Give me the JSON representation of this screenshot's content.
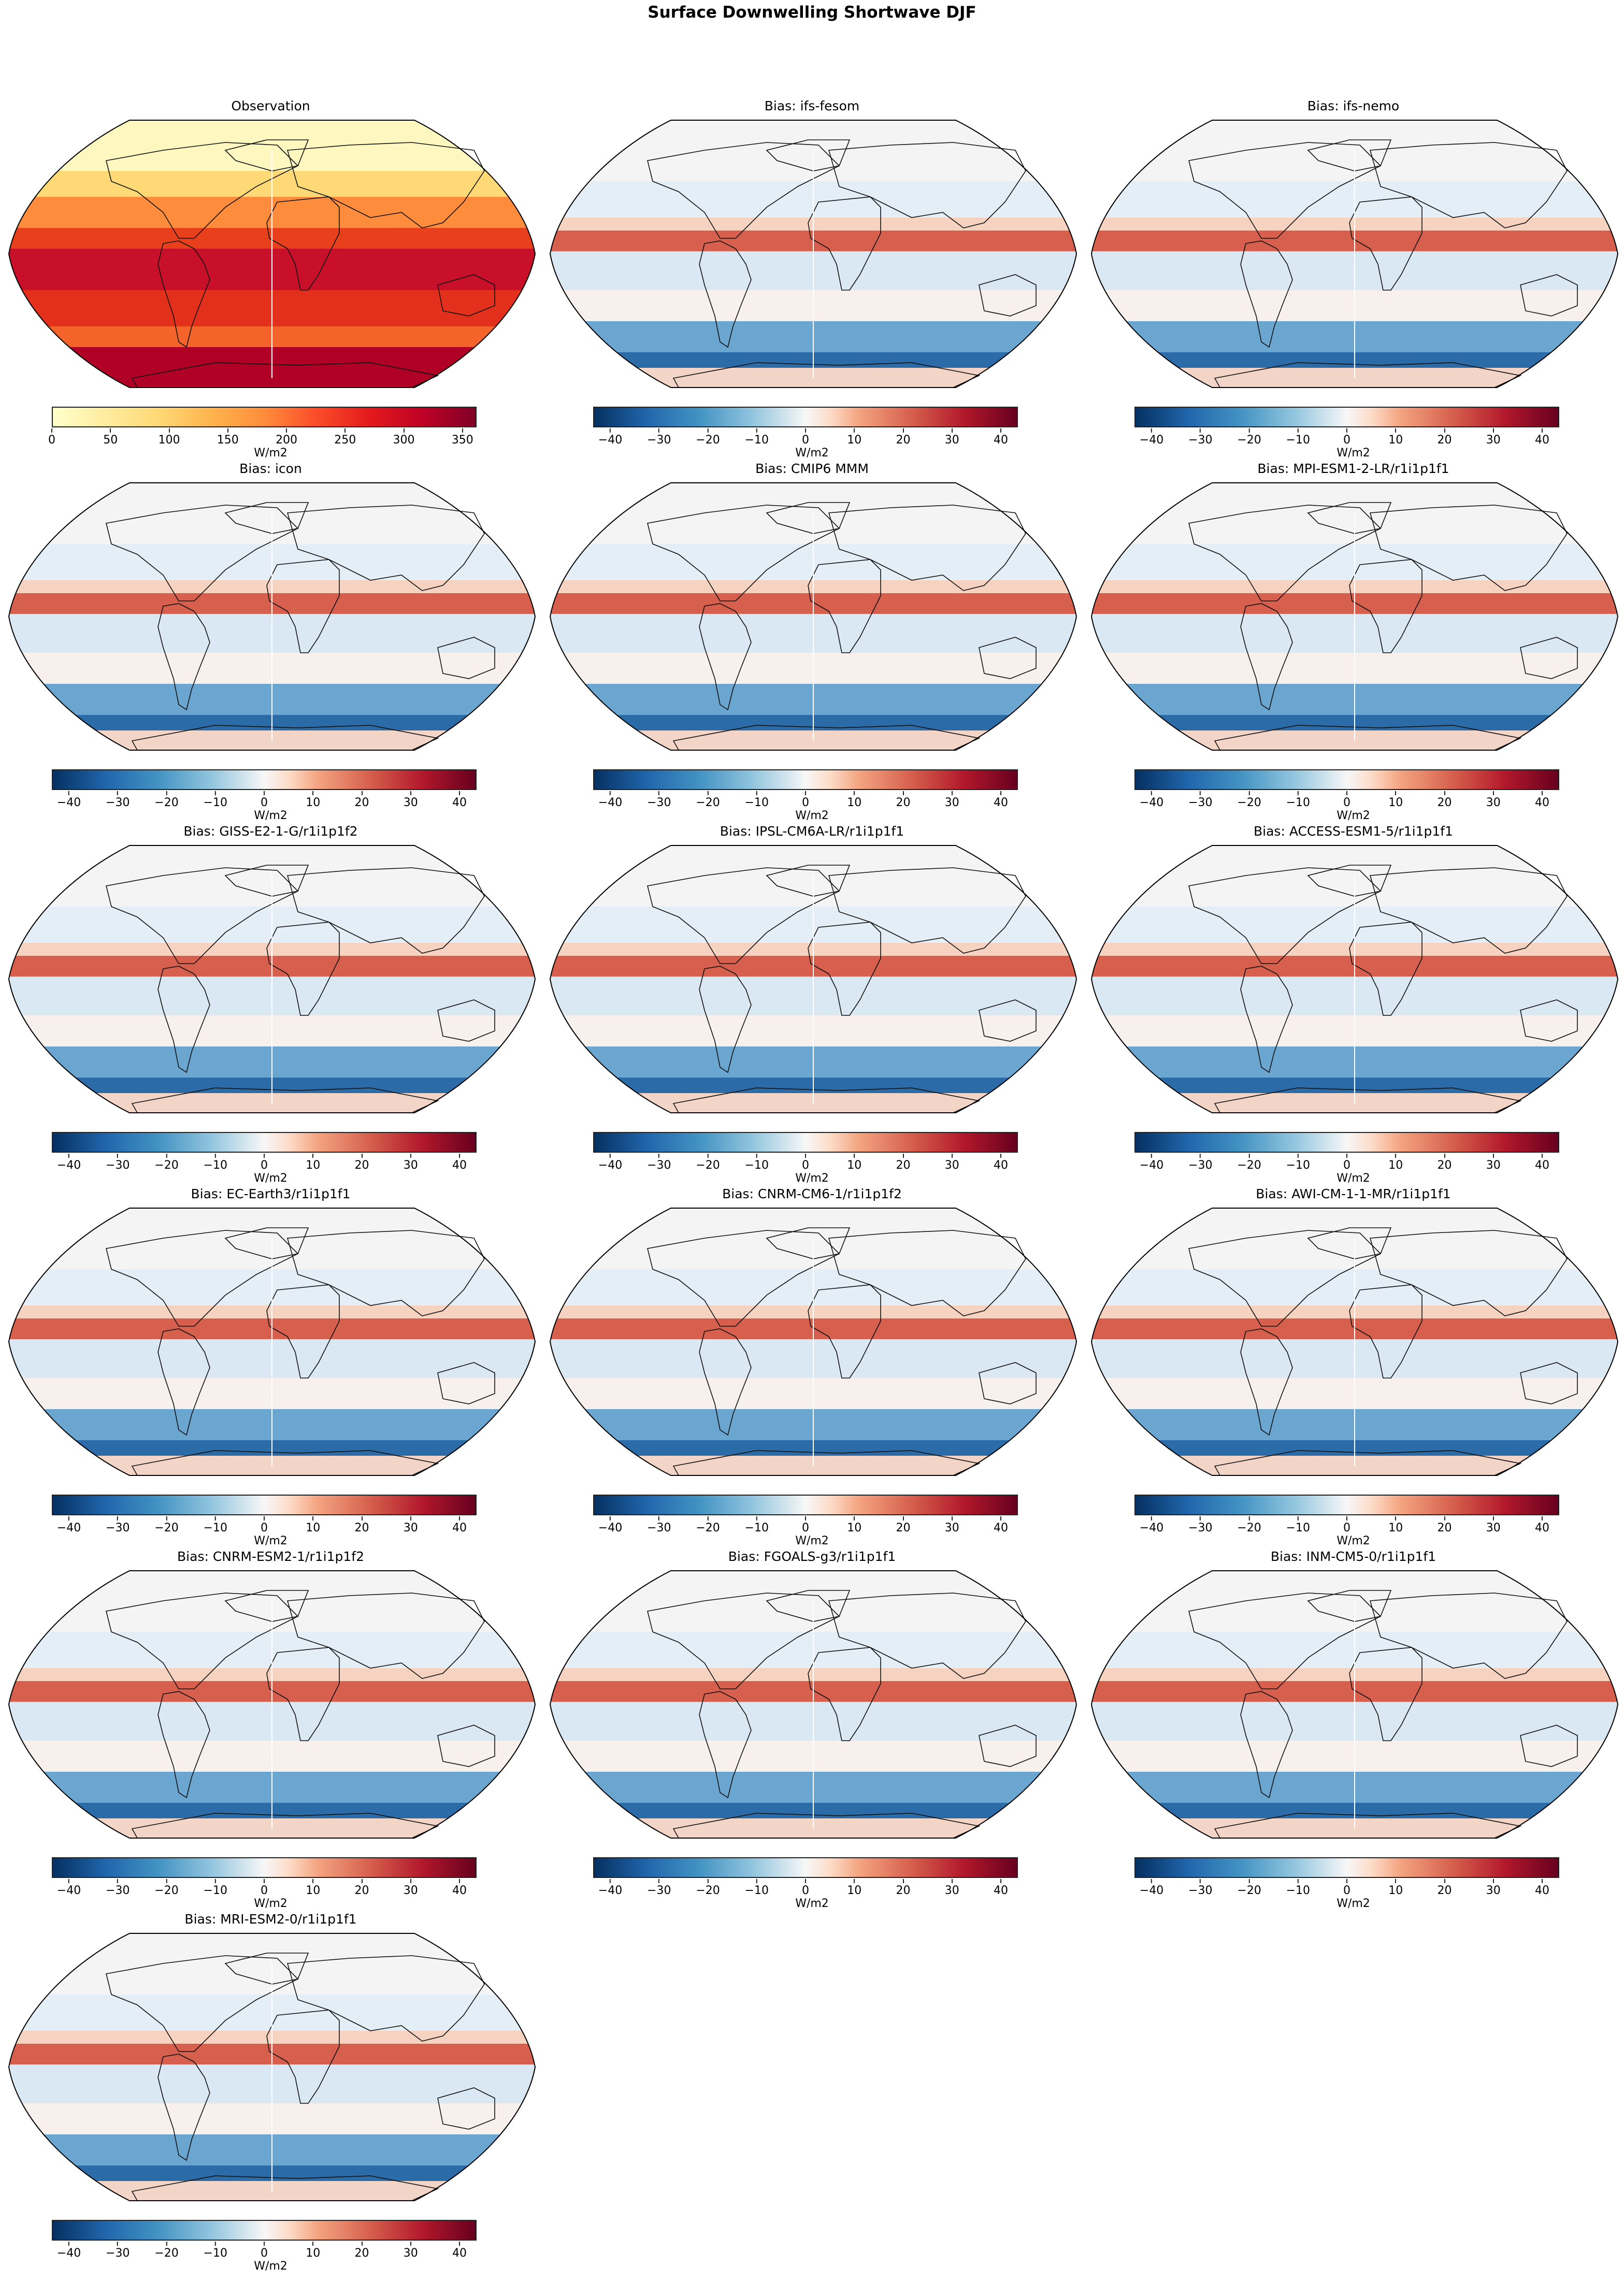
{
  "figure": {
    "title": "Surface Downwelling Shortwave DJF"
  },
  "colorbars": {
    "observation": {
      "unit": "W/m2",
      "cmap": "YlOrRd",
      "range": [
        0,
        362
      ],
      "ticks": [
        "0",
        "50",
        "100",
        "150",
        "200",
        "250",
        "300",
        "350"
      ]
    },
    "bias": {
      "unit": "W/m2",
      "cmap": "RdBu_r",
      "range": [
        -43.5,
        43.5
      ],
      "ticks": [
        "−40",
        "−30",
        "−20",
        "−10",
        "0",
        "10",
        "20",
        "30",
        "40"
      ]
    }
  },
  "panels": [
    {
      "title": "Observation"
    },
    {
      "title": "Bias: ifs-fesom"
    },
    {
      "title": "Bias: ifs-nemo"
    },
    {
      "title": "Bias: icon"
    },
    {
      "title": "Bias: CMIP6 MMM"
    },
    {
      "title": "Bias: MPI-ESM1-2-LR/r1i1p1f1"
    },
    {
      "title": "Bias: GISS-E2-1-G/r1i1p1f2"
    },
    {
      "title": "Bias: IPSL-CM6A-LR/r1i1p1f1"
    },
    {
      "title": "Bias: ACCESS-ESM1-5/r1i1p1f1"
    },
    {
      "title": "Bias: EC-Earth3/r1i1p1f1"
    },
    {
      "title": "Bias: CNRM-CM6-1/r1i1p1f2"
    },
    {
      "title": "Bias: AWI-CM-1-1-MR/r1i1p1f1"
    },
    {
      "title": "Bias: CNRM-ESM2-1/r1i1p1f2"
    },
    {
      "title": "Bias: FGOALS-g3/r1i1p1f1"
    },
    {
      "title": "Bias: INM-CM5-0/r1i1p1f1"
    },
    {
      "title": "Bias: MRI-ESM2-0/r1i1p1f1"
    }
  ],
  "chart_data": {
    "type": "heatmap",
    "title": "Surface Downwelling Shortwave DJF",
    "projection": "Robinson (global map)",
    "layout": {
      "rows": 6,
      "cols": 3,
      "panel_count": 16
    },
    "series": [
      {
        "name": "Observation",
        "kind": "absolute",
        "vmin": 0,
        "vmax": 362,
        "unit": "W/m2",
        "colorbar_ticks": [
          0,
          50,
          100,
          150,
          200,
          250,
          300,
          350
        ]
      },
      {
        "name": "Bias: ifs-fesom",
        "kind": "bias",
        "vmin": -43.5,
        "vmax": 43.5,
        "unit": "W/m2"
      },
      {
        "name": "Bias: ifs-nemo",
        "kind": "bias",
        "vmin": -43.5,
        "vmax": 43.5,
        "unit": "W/m2"
      },
      {
        "name": "Bias: icon",
        "kind": "bias",
        "vmin": -43.5,
        "vmax": 43.5,
        "unit": "W/m2"
      },
      {
        "name": "Bias: CMIP6 MMM",
        "kind": "bias",
        "vmin": -43.5,
        "vmax": 43.5,
        "unit": "W/m2"
      },
      {
        "name": "Bias: MPI-ESM1-2-LR/r1i1p1f1",
        "kind": "bias",
        "vmin": -43.5,
        "vmax": 43.5,
        "unit": "W/m2"
      },
      {
        "name": "Bias: GISS-E2-1-G/r1i1p1f2",
        "kind": "bias",
        "vmin": -43.5,
        "vmax": 43.5,
        "unit": "W/m2"
      },
      {
        "name": "Bias: IPSL-CM6A-LR/r1i1p1f1",
        "kind": "bias",
        "vmin": -43.5,
        "vmax": 43.5,
        "unit": "W/m2"
      },
      {
        "name": "Bias: ACCESS-ESM1-5/r1i1p1f1",
        "kind": "bias",
        "vmin": -43.5,
        "vmax": 43.5,
        "unit": "W/m2"
      },
      {
        "name": "Bias: EC-Earth3/r1i1p1f1",
        "kind": "bias",
        "vmin": -43.5,
        "vmax": 43.5,
        "unit": "W/m2"
      },
      {
        "name": "Bias: CNRM-CM6-1/r1i1p1f2",
        "kind": "bias",
        "vmin": -43.5,
        "vmax": 43.5,
        "unit": "W/m2"
      },
      {
        "name": "Bias: AWI-CM-1-1-MR/r1i1p1f1",
        "kind": "bias",
        "vmin": -43.5,
        "vmax": 43.5,
        "unit": "W/m2"
      },
      {
        "name": "Bias: CNRM-ESM2-1/r1i1p1f2",
        "kind": "bias",
        "vmin": -43.5,
        "vmax": 43.5,
        "unit": "W/m2"
      },
      {
        "name": "Bias: FGOALS-g3/r1i1p1f1",
        "kind": "bias",
        "vmin": -43.5,
        "vmax": 43.5,
        "unit": "W/m2"
      },
      {
        "name": "Bias: INM-CM5-0/r1i1p1f1",
        "kind": "bias",
        "vmin": -43.5,
        "vmax": 43.5,
        "unit": "W/m2"
      },
      {
        "name": "Bias: MRI-ESM2-0/r1i1p1f1",
        "kind": "bias",
        "vmin": -43.5,
        "vmax": 43.5,
        "unit": "W/m2"
      }
    ],
    "colorbar_label": "W/m2",
    "bias_colorbar_ticks": [
      -40,
      -30,
      -20,
      -10,
      0,
      10,
      20,
      30,
      40
    ]
  }
}
